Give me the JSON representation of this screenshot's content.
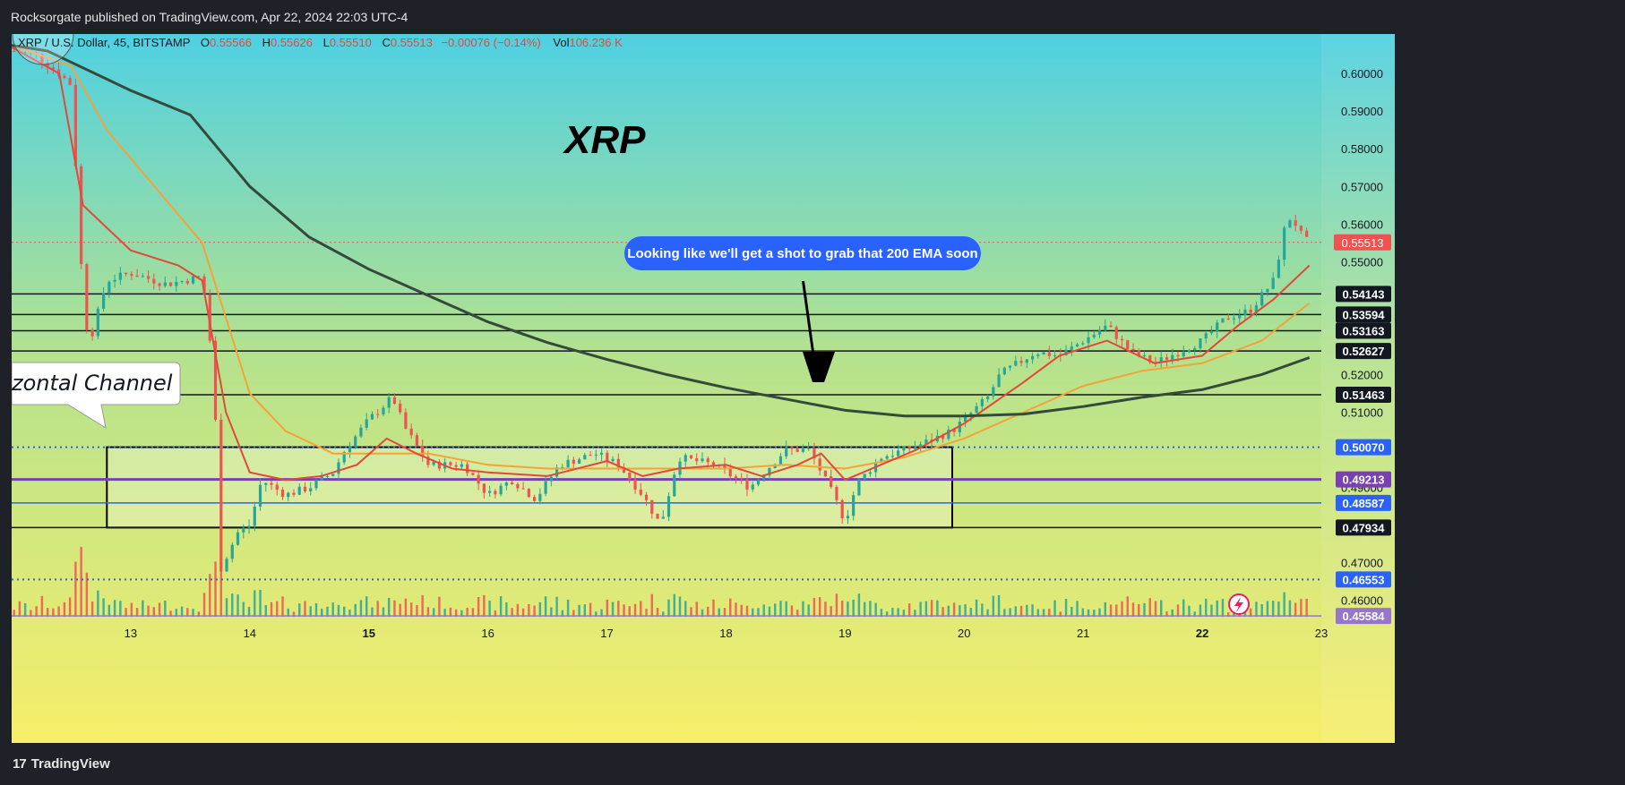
{
  "header": {
    "publisher_line": "Rocksorgate published on TradingView.com, Apr 22, 2024 22:03 UTC-4"
  },
  "footer": {
    "brand": "TradingView",
    "brand_mark": "17"
  },
  "chart_data": {
    "type": "candlestick",
    "symbol": {
      "name": "XRP / U.S. Dollar, 45, BITSTAMP"
    },
    "ohlc": {
      "o_label": "O",
      "o": "0.55566",
      "h_label": "H",
      "h": "0.55626",
      "l_label": "L",
      "l": "0.55510",
      "c_label": "C",
      "c": "0.55513",
      "change": "−0.00076 (−0.14%)",
      "vol_label": "Vol",
      "vol": "106.236 K"
    },
    "title": "XRP",
    "channel_label": "zontal Channel",
    "annotation": "Looking like we'll get a shot to grab that 200 EMA soon",
    "ylim": [
      0.4535,
      0.6105
    ],
    "xlim": [
      12.0,
      23.0
    ],
    "y_ticks": [
      "0.60000",
      "0.59000",
      "0.58000",
      "0.57000",
      "0.56000",
      "0.55000",
      "0.52000",
      "0.51000",
      "0.49000",
      "0.47000",
      "0.46000"
    ],
    "x_ticks": [
      {
        "label": "13",
        "x": 13.0
      },
      {
        "label": "14",
        "x": 14.0
      },
      {
        "label": "15",
        "x": 15.0
      },
      {
        "label": "16",
        "x": 16.0
      },
      {
        "label": "17",
        "x": 17.0
      },
      {
        "label": "18",
        "x": 18.0
      },
      {
        "label": "19",
        "x": 19.0
      },
      {
        "label": "20",
        "x": 20.0
      },
      {
        "label": "21",
        "x": 21.0
      },
      {
        "label": "22",
        "x": 22.0
      },
      {
        "label": "23",
        "x": 23.0
      }
    ],
    "last_price": "0.55513",
    "levels": [
      {
        "label": "0.54143",
        "value": 0.54143,
        "style": "solid",
        "color": "#131722"
      },
      {
        "label": "0.53594",
        "value": 0.53594,
        "style": "solid",
        "color": "#131722"
      },
      {
        "label": "0.53163",
        "value": 0.53163,
        "style": "solid",
        "color": "#131722"
      },
      {
        "label": "0.52627",
        "value": 0.52627,
        "style": "solid",
        "color": "#131722"
      },
      {
        "label": "0.51463",
        "value": 0.51463,
        "style": "solid",
        "color": "#131722"
      },
      {
        "label": "0.50070",
        "value": 0.5007,
        "style": "dotted",
        "color": "#2962ff"
      },
      {
        "label": "0.49213",
        "value": 0.49213,
        "style": "solid",
        "color": "#7b3fb5"
      },
      {
        "label": "0.48587",
        "value": 0.48587,
        "style": "solid",
        "color": "#2962ff"
      },
      {
        "label": "0.47934",
        "value": 0.47934,
        "style": "solid",
        "color": "#131722"
      },
      {
        "label": "0.46553",
        "value": 0.46553,
        "style": "dotted",
        "color": "#2962ff"
      },
      {
        "label": "0.45584",
        "value": 0.45584,
        "style": "solid",
        "color": "#9575cd"
      }
    ],
    "channel": {
      "x0": 12.8,
      "x1": 19.9,
      "y_top": 0.5007,
      "y_bottom": 0.47934
    },
    "ema200": [
      [
        12.0,
        0.6075
      ],
      [
        12.3,
        0.606
      ],
      [
        12.6,
        0.6015
      ],
      [
        13.0,
        0.5955
      ],
      [
        13.5,
        0.589
      ],
      [
        14.0,
        0.57
      ],
      [
        14.5,
        0.5565
      ],
      [
        15.0,
        0.548
      ],
      [
        15.5,
        0.541
      ],
      [
        16.0,
        0.534
      ],
      [
        16.5,
        0.5285
      ],
      [
        17.0,
        0.524
      ],
      [
        17.5,
        0.52
      ],
      [
        18.0,
        0.5165
      ],
      [
        18.5,
        0.5135
      ],
      [
        19.0,
        0.5105
      ],
      [
        19.5,
        0.509
      ],
      [
        20.0,
        0.509
      ],
      [
        20.5,
        0.5095
      ],
      [
        21.0,
        0.5115
      ],
      [
        21.5,
        0.514
      ],
      [
        22.0,
        0.516
      ],
      [
        22.5,
        0.52
      ],
      [
        22.9,
        0.5245
      ]
    ],
    "ema_fast": [
      [
        12.0,
        0.607
      ],
      [
        12.4,
        0.6
      ],
      [
        12.6,
        0.565
      ],
      [
        13.0,
        0.553
      ],
      [
        13.4,
        0.549
      ],
      [
        13.6,
        0.545
      ],
      [
        13.8,
        0.51
      ],
      [
        14.0,
        0.494
      ],
      [
        14.3,
        0.492
      ],
      [
        14.6,
        0.493
      ],
      [
        14.9,
        0.496
      ],
      [
        15.15,
        0.503
      ],
      [
        15.4,
        0.499
      ],
      [
        15.7,
        0.495
      ],
      [
        16.0,
        0.494
      ],
      [
        16.5,
        0.493
      ],
      [
        17.0,
        0.497
      ],
      [
        17.3,
        0.493
      ],
      [
        17.6,
        0.495
      ],
      [
        18.0,
        0.496
      ],
      [
        18.3,
        0.493
      ],
      [
        18.6,
        0.496
      ],
      [
        18.8,
        0.499
      ],
      [
        19.0,
        0.492
      ],
      [
        19.3,
        0.496
      ],
      [
        19.6,
        0.5
      ],
      [
        20.0,
        0.507
      ],
      [
        20.5,
        0.518
      ],
      [
        20.8,
        0.525
      ],
      [
        21.2,
        0.529
      ],
      [
        21.6,
        0.523
      ],
      [
        22.0,
        0.525
      ],
      [
        22.3,
        0.533
      ],
      [
        22.6,
        0.54
      ],
      [
        22.9,
        0.549
      ]
    ],
    "ema_mid": [
      [
        12.0,
        0.6075
      ],
      [
        12.5,
        0.602
      ],
      [
        12.8,
        0.585
      ],
      [
        13.2,
        0.57
      ],
      [
        13.6,
        0.555
      ],
      [
        14.0,
        0.515
      ],
      [
        14.3,
        0.505
      ],
      [
        14.7,
        0.499
      ],
      [
        15.0,
        0.499
      ],
      [
        15.5,
        0.499
      ],
      [
        16.0,
        0.496
      ],
      [
        16.5,
        0.495
      ],
      [
        17.0,
        0.495
      ],
      [
        17.5,
        0.495
      ],
      [
        18.0,
        0.495
      ],
      [
        18.5,
        0.496
      ],
      [
        19.0,
        0.495
      ],
      [
        19.5,
        0.498
      ],
      [
        20.0,
        0.503
      ],
      [
        20.5,
        0.51
      ],
      [
        21.0,
        0.517
      ],
      [
        21.5,
        0.521
      ],
      [
        22.0,
        0.523
      ],
      [
        22.5,
        0.529
      ],
      [
        22.9,
        0.539
      ]
    ],
    "candle_path": [
      [
        12.0,
        0.606
      ],
      [
        12.2,
        0.605
      ],
      [
        12.4,
        0.6
      ],
      [
        12.5,
        0.597
      ],
      [
        12.6,
        0.54
      ],
      [
        12.65,
        0.528
      ],
      [
        12.8,
        0.545
      ],
      [
        13.0,
        0.547
      ],
      [
        13.3,
        0.544
      ],
      [
        13.6,
        0.546
      ],
      [
        13.7,
        0.52
      ],
      [
        13.75,
        0.468
      ],
      [
        13.9,
        0.478
      ],
      [
        14.0,
        0.48
      ],
      [
        14.1,
        0.492
      ],
      [
        14.3,
        0.488
      ],
      [
        14.5,
        0.49
      ],
      [
        14.7,
        0.494
      ],
      [
        14.8,
        0.5
      ],
      [
        15.0,
        0.508
      ],
      [
        15.2,
        0.514
      ],
      [
        15.3,
        0.506
      ],
      [
        15.5,
        0.496
      ],
      [
        15.8,
        0.496
      ],
      [
        16.0,
        0.488
      ],
      [
        16.2,
        0.492
      ],
      [
        16.4,
        0.487
      ],
      [
        16.6,
        0.496
      ],
      [
        16.9,
        0.499
      ],
      [
        17.1,
        0.496
      ],
      [
        17.3,
        0.488
      ],
      [
        17.45,
        0.48
      ],
      [
        17.6,
        0.498
      ],
      [
        17.9,
        0.496
      ],
      [
        18.2,
        0.49
      ],
      [
        18.5,
        0.5
      ],
      [
        18.7,
        0.5
      ],
      [
        18.9,
        0.488
      ],
      [
        19.0,
        0.481
      ],
      [
        19.1,
        0.491
      ],
      [
        19.3,
        0.498
      ],
      [
        19.6,
        0.501
      ],
      [
        19.9,
        0.505
      ],
      [
        20.0,
        0.508
      ],
      [
        20.2,
        0.514
      ],
      [
        20.3,
        0.52
      ],
      [
        20.6,
        0.526
      ],
      [
        20.8,
        0.525
      ],
      [
        21.0,
        0.529
      ],
      [
        21.2,
        0.533
      ],
      [
        21.4,
        0.526
      ],
      [
        21.6,
        0.523
      ],
      [
        21.8,
        0.526
      ],
      [
        22.0,
        0.529
      ],
      [
        22.2,
        0.535
      ],
      [
        22.4,
        0.537
      ],
      [
        22.6,
        0.545
      ],
      [
        22.7,
        0.56
      ],
      [
        22.75,
        0.562
      ],
      [
        22.85,
        0.556
      ],
      [
        22.9,
        0.5551
      ]
    ],
    "colors": {
      "up": "#26a69a",
      "down": "#ef5350",
      "ema200": "#344a3a",
      "ema_fast": "#e04a3c",
      "ema_mid": "#f2a33a",
      "bg_top": "#4fd0e2",
      "bg_bottom": "#f7ee6a"
    }
  }
}
